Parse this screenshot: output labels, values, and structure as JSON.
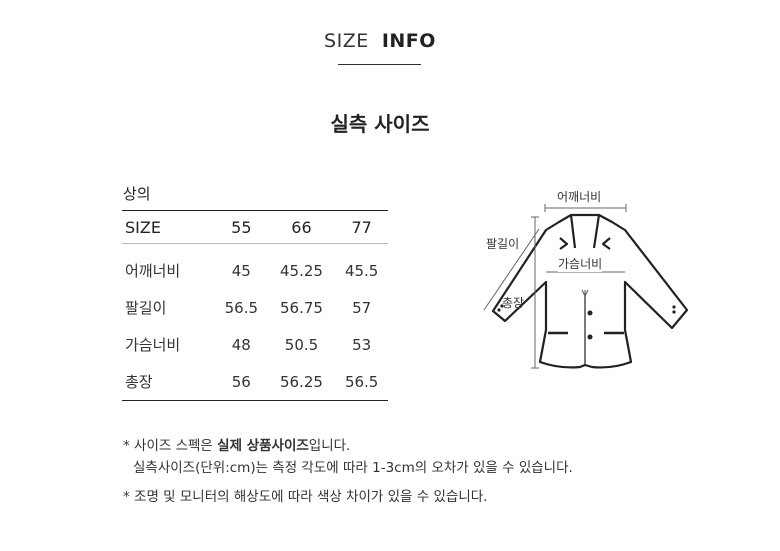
{
  "header": {
    "title_light": "SIZE",
    "title_bold": "INFO"
  },
  "section_title": "실측 사이즈",
  "table": {
    "category": "상의",
    "columns": [
      "SIZE",
      "55",
      "66",
      "77"
    ],
    "rows": [
      {
        "label": "어깨너비",
        "values": [
          "45",
          "45.25",
          "45.5"
        ]
      },
      {
        "label": "팔길이",
        "values": [
          "56.5",
          "56.75",
          "57"
        ]
      },
      {
        "label": "가슴너비",
        "values": [
          "48",
          "50.5",
          "53"
        ]
      },
      {
        "label": "총장",
        "values": [
          "56",
          "56.25",
          "56.5"
        ]
      }
    ]
  },
  "diagram": {
    "labels": {
      "shoulder": "어깨너비",
      "sleeve": "팔길이",
      "chest": "가슴너비",
      "length": "총장"
    }
  },
  "notes": {
    "line1_pre": "* 사이즈 스펙은 ",
    "line1_bold": "실제 상품사이즈",
    "line1_post": "입니다.",
    "line2": "실측사이즈(단위:cm)는 측정 각도에 따라 1-3cm의 오차가 있을 수 있습니다.",
    "line3": "* 조명 및 모니터의 해상도에 따라 색상 차이가 있을 수 있습니다."
  }
}
